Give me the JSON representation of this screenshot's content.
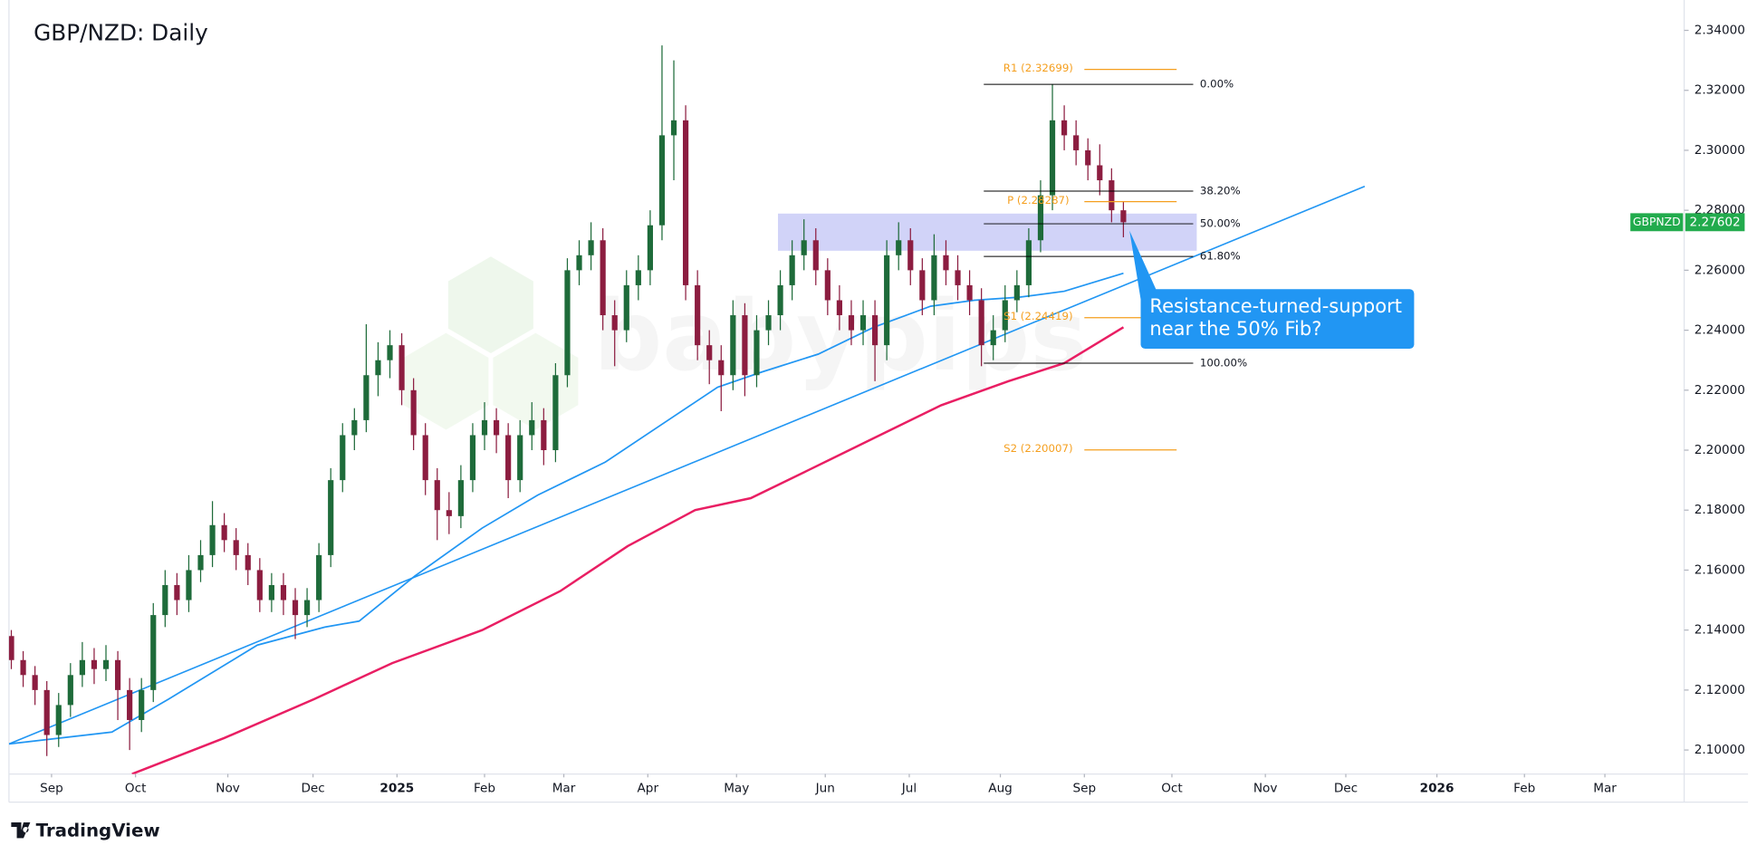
{
  "chart_data": {
    "type": "candlestick",
    "title": "GBP/NZD: Daily",
    "watermark": "babypips",
    "footer": "TradingView",
    "up_color": "#1e6b3a",
    "down_color": "#8c1d40",
    "xlim": [
      -0.2,
      141.4
    ],
    "xticks": [
      {
        "value": 3.4,
        "label": "Sep"
      },
      {
        "value": 10.5,
        "label": "Oct"
      },
      {
        "value": 18.3,
        "label": "Nov"
      },
      {
        "value": 25.5,
        "label": "Dec"
      },
      {
        "value": 32.6,
        "label": "2025"
      },
      {
        "value": 40.0,
        "label": "Feb"
      },
      {
        "value": 46.7,
        "label": "Mar"
      },
      {
        "value": 53.8,
        "label": "Apr"
      },
      {
        "value": 61.3,
        "label": "May"
      },
      {
        "value": 68.8,
        "label": "Jun"
      },
      {
        "value": 75.9,
        "label": "Jul"
      },
      {
        "value": 83.6,
        "label": "Aug"
      },
      {
        "value": 90.7,
        "label": "Sep"
      },
      {
        "value": 98.1,
        "label": "Oct"
      },
      {
        "value": 106.0,
        "label": "Nov"
      },
      {
        "value": 112.8,
        "label": "Dec"
      },
      {
        "value": 120.5,
        "label": "2026"
      },
      {
        "value": 127.9,
        "label": "Feb"
      },
      {
        "value": 134.7,
        "label": "Mar"
      }
    ],
    "ylim": [
      2.092,
      2.349
    ],
    "yticks": [
      {
        "value": 2.1,
        "label": "2.10000"
      },
      {
        "value": 2.12,
        "label": "2.12000"
      },
      {
        "value": 2.14,
        "label": "2.14000"
      },
      {
        "value": 2.16,
        "label": "2.16000"
      },
      {
        "value": 2.18,
        "label": "2.18000"
      },
      {
        "value": 2.2,
        "label": "2.20000"
      },
      {
        "value": 2.22,
        "label": "2.22000"
      },
      {
        "value": 2.24,
        "label": "2.24000"
      },
      {
        "value": 2.26,
        "label": "2.26000"
      },
      {
        "value": 2.28,
        "label": "2.28000"
      },
      {
        "value": 2.3,
        "label": "2.30000"
      },
      {
        "value": 2.32,
        "label": "2.32000"
      },
      {
        "value": 2.34,
        "label": "2.34000"
      }
    ],
    "grid": false,
    "open": [
      2.138,
      2.13,
      2.125,
      2.12,
      2.105,
      2.115,
      2.125,
      2.13,
      2.127,
      2.13,
      2.12,
      2.11,
      2.12,
      2.145,
      2.155,
      2.15,
      2.16,
      2.165,
      2.175,
      2.17,
      2.165,
      2.16,
      2.15,
      2.155,
      2.15,
      2.145,
      2.15,
      2.165,
      2.19,
      2.205,
      2.21,
      2.225,
      2.23,
      2.235,
      2.22,
      2.205,
      2.19,
      2.18,
      2.178,
      2.19,
      2.205,
      2.21,
      2.205,
      2.19,
      2.205,
      2.21,
      2.2,
      2.225,
      2.26,
      2.265,
      2.27,
      2.245,
      2.24,
      2.255,
      2.26,
      2.275,
      2.305,
      2.31,
      2.255,
      2.235,
      2.23,
      2.225,
      2.245,
      2.225,
      2.24,
      2.245,
      2.255,
      2.265,
      2.27,
      2.26,
      2.25,
      2.245,
      2.24,
      2.245,
      2.235,
      2.265,
      2.27,
      2.26,
      2.25,
      2.265,
      2.26,
      2.255,
      2.25,
      2.235,
      2.24,
      2.25,
      2.255,
      2.27,
      2.285,
      2.31,
      2.305,
      2.3,
      2.295,
      2.29,
      2.28
    ],
    "high": [
      2.14,
      2.133,
      2.128,
      2.123,
      2.119,
      2.129,
      2.136,
      2.134,
      2.135,
      2.133,
      2.124,
      2.124,
      2.149,
      2.16,
      2.159,
      2.165,
      2.17,
      2.183,
      2.179,
      2.174,
      2.169,
      2.164,
      2.159,
      2.159,
      2.154,
      2.154,
      2.169,
      2.194,
      2.209,
      2.214,
      2.242,
      2.236,
      2.24,
      2.239,
      2.224,
      2.209,
      2.194,
      2.186,
      2.195,
      2.209,
      2.216,
      2.214,
      2.209,
      2.21,
      2.216,
      2.214,
      2.229,
      2.264,
      2.27,
      2.276,
      2.274,
      2.25,
      2.26,
      2.265,
      2.28,
      2.335,
      2.33,
      2.315,
      2.26,
      2.24,
      2.235,
      2.25,
      2.249,
      2.245,
      2.25,
      2.26,
      2.27,
      2.277,
      2.274,
      2.264,
      2.255,
      2.25,
      2.25,
      2.25,
      2.27,
      2.276,
      2.274,
      2.264,
      2.272,
      2.27,
      2.265,
      2.26,
      2.254,
      2.245,
      2.255,
      2.26,
      2.274,
      2.29,
      2.322,
      2.315,
      2.31,
      2.304,
      2.302,
      2.294,
      2.283
    ],
    "low": [
      2.127,
      2.121,
      2.115,
      2.098,
      2.101,
      2.111,
      2.121,
      2.122,
      2.123,
      2.11,
      2.1,
      2.106,
      2.116,
      2.141,
      2.145,
      2.146,
      2.156,
      2.161,
      2.166,
      2.16,
      2.155,
      2.146,
      2.146,
      2.145,
      2.137,
      2.141,
      2.146,
      2.161,
      2.186,
      2.2,
      2.206,
      2.218,
      2.224,
      2.215,
      2.2,
      2.185,
      2.17,
      2.172,
      2.174,
      2.186,
      2.2,
      2.199,
      2.184,
      2.186,
      2.2,
      2.195,
      2.196,
      2.221,
      2.255,
      2.26,
      2.24,
      2.228,
      2.236,
      2.25,
      2.255,
      2.27,
      2.29,
      2.25,
      2.23,
      2.222,
      2.213,
      2.22,
      2.218,
      2.221,
      2.235,
      2.24,
      2.25,
      2.26,
      2.255,
      2.245,
      2.24,
      2.235,
      2.235,
      2.223,
      2.23,
      2.26,
      2.255,
      2.245,
      2.245,
      2.255,
      2.25,
      2.245,
      2.228,
      2.23,
      2.236,
      2.246,
      2.251,
      2.266,
      2.28,
      2.3,
      2.295,
      2.29,
      2.285,
      2.276,
      2.271
    ],
    "close": [
      2.13,
      2.125,
      2.12,
      2.105,
      2.115,
      2.125,
      2.13,
      2.127,
      2.13,
      2.12,
      2.11,
      2.12,
      2.145,
      2.155,
      2.15,
      2.16,
      2.165,
      2.175,
      2.17,
      2.165,
      2.16,
      2.15,
      2.155,
      2.15,
      2.145,
      2.15,
      2.165,
      2.19,
      2.205,
      2.21,
      2.225,
      2.23,
      2.235,
      2.22,
      2.205,
      2.19,
      2.18,
      2.178,
      2.19,
      2.205,
      2.21,
      2.205,
      2.19,
      2.205,
      2.21,
      2.2,
      2.225,
      2.26,
      2.265,
      2.27,
      2.245,
      2.24,
      2.255,
      2.26,
      2.275,
      2.305,
      2.31,
      2.255,
      2.235,
      2.23,
      2.225,
      2.245,
      2.225,
      2.24,
      2.245,
      2.255,
      2.265,
      2.27,
      2.26,
      2.25,
      2.245,
      2.24,
      2.245,
      2.235,
      2.265,
      2.27,
      2.26,
      2.25,
      2.265,
      2.26,
      2.255,
      2.25,
      2.235,
      2.24,
      2.25,
      2.255,
      2.27,
      2.285,
      2.31,
      2.305,
      2.3,
      2.295,
      2.29,
      2.28,
      2.276
    ],
    "moving_averages": [
      {
        "color": "#2196f3",
        "x": [
          -0.2,
          8.5,
          13.3,
          20.8,
          26.5,
          29.4,
          34.1,
          39.8,
          44.5,
          50.2,
          55.9,
          59.7,
          63.4,
          68.2,
          72.9,
          77.7,
          81.4,
          85.2,
          89.0,
          94.0
        ],
        "values": [
          2.102,
          2.106,
          2.117,
          2.135,
          2.141,
          2.143,
          2.158,
          2.174,
          2.185,
          2.196,
          2.211,
          2.221,
          2.226,
          2.232,
          2.241,
          2.248,
          2.25,
          2.251,
          2.253,
          2.259
        ]
      },
      {
        "color": "#e91e63",
        "x": [
          10.2,
          18.0,
          25.6,
          32.2,
          39.8,
          46.4,
          52.1,
          57.8,
          62.5,
          67.2,
          72.9,
          78.6,
          84.3,
          89.0,
          94.0
        ],
        "values": [
          2.092,
          2.104,
          2.117,
          2.129,
          2.14,
          2.153,
          2.168,
          2.18,
          2.184,
          2.193,
          2.204,
          2.215,
          2.223,
          2.229,
          2.241
        ]
      }
    ],
    "trendline": {
      "color": "#2196f3",
      "x": [
        -0.2,
        114.4
      ],
      "values": [
        2.102,
        2.288
      ]
    },
    "zone": {
      "color": "#c9cbf7",
      "x": [
        64.8,
        100.2
      ],
      "values": [
        2.2665,
        2.2789
      ]
    },
    "fib_color": "#000000",
    "fib_levels": [
      {
        "label": "0.00%",
        "value": 2.322
      },
      {
        "label": "38.20%",
        "value": 2.2864
      },
      {
        "label": "50.00%",
        "value": 2.2755
      },
      {
        "label": "61.80%",
        "value": 2.2646
      },
      {
        "label": "100.00%",
        "value": 2.229
      }
    ],
    "pivot_color": "#f59f1e",
    "pivots": [
      {
        "label": "R1 (2.32699)",
        "value": 2.32699
      },
      {
        "label": "P (2.28287)",
        "value": 2.28287
      },
      {
        "label": "S1 (2.24419)",
        "value": 2.24419
      },
      {
        "label": "S2 (2.20007)",
        "value": 2.20007
      }
    ],
    "last_price": {
      "symbol": "GBPNZD",
      "label": "2.27602",
      "value": 2.27602,
      "color": "#22ab4d"
    },
    "annotation": {
      "color": "#2196f3",
      "lines": [
        "Resistance-turned-support",
        "near the 50% Fib?"
      ]
    }
  }
}
